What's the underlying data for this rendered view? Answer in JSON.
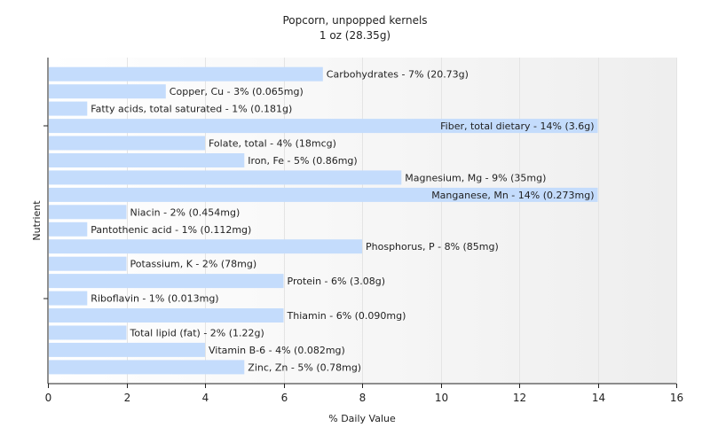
{
  "chart_data": {
    "type": "bar",
    "orientation": "horizontal",
    "title": "Popcorn, unpopped kernels",
    "subtitle": "1 oz (28.35g)",
    "xlabel": "% Daily Value",
    "ylabel": "Nutrient",
    "xlim": [
      0,
      16
    ],
    "xticks": [
      0,
      2,
      4,
      6,
      8,
      10,
      12,
      14,
      16
    ],
    "grid": true,
    "bar_color": "#c4dcfc",
    "categories": [
      "Carbohydrates",
      "Copper, Cu",
      "Fatty acids, total saturated",
      "Fiber, total dietary",
      "Folate, total",
      "Iron, Fe",
      "Magnesium, Mg",
      "Manganese, Mn",
      "Niacin",
      "Pantothenic acid",
      "Phosphorus, P",
      "Potassium, K",
      "Protein",
      "Riboflavin",
      "Thiamin",
      "Total lipid (fat)",
      "Vitamin B-6",
      "Zinc, Zn"
    ],
    "values": [
      7,
      3,
      1,
      14,
      4,
      5,
      9,
      14,
      2,
      1,
      8,
      2,
      6,
      1,
      6,
      2,
      4,
      5
    ],
    "labels": [
      "Carbohydrates - 7% (20.73g)",
      "Copper, Cu - 3% (0.065mg)",
      "Fatty acids, total saturated - 1% (0.181g)",
      "Fiber, total dietary - 14% (3.6g)",
      "Folate, total - 4% (18mcg)",
      "Iron, Fe - 5% (0.86mg)",
      "Magnesium, Mg - 9% (35mg)",
      "Manganese, Mn - 14% (0.273mg)",
      "Niacin - 2% (0.454mg)",
      "Pantothenic acid - 1% (0.112mg)",
      "Phosphorus, P - 8% (85mg)",
      "Potassium, K - 2% (78mg)",
      "Protein - 6% (3.08g)",
      "Riboflavin - 1% (0.013mg)",
      "Thiamin - 6% (0.090mg)",
      "Total lipid (fat) - 2% (1.22g)",
      "Vitamin B-6 - 4% (0.082mg)",
      "Zinc, Zn - 5% (0.78mg)"
    ]
  }
}
